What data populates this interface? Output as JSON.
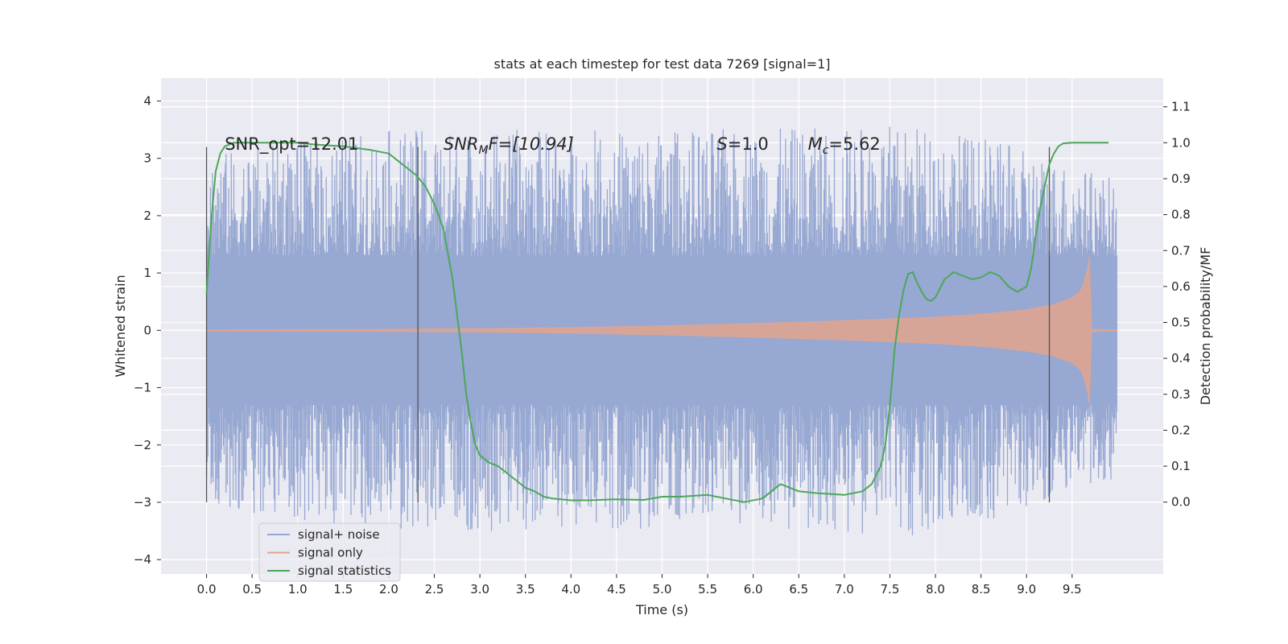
{
  "chart_data": {
    "type": "line",
    "title": "stats at each timestep for test data 7269 [signal=1]",
    "xlabel": "Time (s)",
    "ylabel": "Whitened strain",
    "y2label": "Detection probability/MF",
    "xlim": [
      -0.5,
      10.5
    ],
    "ylim": [
      -4.25,
      4.4
    ],
    "y2lim": [
      -0.2,
      1.18
    ],
    "grid": true,
    "legend_position": "lower-left",
    "xticks": [
      0.0,
      0.5,
      1.0,
      1.5,
      2.0,
      2.5,
      3.0,
      3.5,
      4.0,
      4.5,
      5.0,
      5.5,
      6.0,
      6.5,
      7.0,
      7.5,
      8.0,
      8.5,
      9.0,
      9.5
    ],
    "xtick_labels": [
      "0.0",
      "0.5",
      "1.0",
      "1.5",
      "2.0",
      "2.5",
      "3.0",
      "3.5",
      "4.0",
      "4.5",
      "5.0",
      "5.5",
      "6.0",
      "6.5",
      "7.0",
      "7.5",
      "8.0",
      "8.5",
      "9.0",
      "9.5"
    ],
    "yticks": [
      4,
      3,
      2,
      1,
      0,
      -1,
      -2,
      -3,
      -4
    ],
    "ytick_labels": [
      "4",
      "3",
      "2",
      "1",
      "0",
      "−1",
      "−2",
      "−3",
      "−4"
    ],
    "y2ticks": [
      1.1,
      1.0,
      0.9,
      0.8,
      0.7,
      0.6,
      0.5,
      0.4,
      0.3,
      0.2,
      0.1,
      0.0
    ],
    "y2tick_labels": [
      "1.1",
      "1.0",
      "0.9",
      "0.8",
      "0.7",
      "0.6",
      "0.5",
      "0.4",
      "0.3",
      "0.2",
      "0.1",
      "0.0"
    ],
    "annotations": {
      "snr_opt": "SNR_opt=12.01",
      "snr_mf_name": "SNR",
      "snr_mf_sub": "M",
      "snr_mf_suffix": "F=[10.94]",
      "s_name": "S",
      "s_value": "=1.0",
      "mc_name": "M",
      "mc_sub": "c",
      "mc_value": "=5.62"
    },
    "vlines": {
      "x": [
        0.0,
        2.32,
        9.25
      ],
      "y_range": [
        -3.0,
        3.2
      ]
    },
    "series": [
      {
        "name": "signal+ noise",
        "color": "#97a8d2",
        "x_range": [
          0.0,
          9.99
        ],
        "core_amplitude": 1.3,
        "peak_envelope": [
          [
            0.0,
            3.0
          ],
          [
            2.0,
            3.4
          ],
          [
            4.0,
            3.4
          ],
          [
            6.0,
            3.4
          ],
          [
            8.0,
            3.5
          ],
          [
            9.99,
            2.6
          ]
        ]
      },
      {
        "name": "signal only",
        "color": "#e0a58e",
        "envelope": [
          [
            0.0,
            0.01
          ],
          [
            1.0,
            0.015
          ],
          [
            2.0,
            0.02
          ],
          [
            3.0,
            0.03
          ],
          [
            4.0,
            0.05
          ],
          [
            5.0,
            0.08
          ],
          [
            6.0,
            0.12
          ],
          [
            7.0,
            0.17
          ],
          [
            8.0,
            0.23
          ],
          [
            8.5,
            0.28
          ],
          [
            9.0,
            0.36
          ],
          [
            9.3,
            0.45
          ],
          [
            9.5,
            0.57
          ],
          [
            9.6,
            0.7
          ],
          [
            9.66,
            1.0
          ],
          [
            9.69,
            1.3
          ],
          [
            9.7,
            0.02
          ],
          [
            9.99,
            0.01
          ]
        ]
      },
      {
        "name": "signal statistics",
        "color": "#4ca75a",
        "x": [
          0.0,
          0.05,
          0.1,
          0.15,
          0.2,
          0.3,
          0.5,
          0.8,
          1.0,
          1.2,
          1.5,
          1.8,
          2.0,
          2.1,
          2.2,
          2.3,
          2.4,
          2.5,
          2.6,
          2.7,
          2.8,
          2.85,
          2.9,
          2.95,
          3.0,
          3.1,
          3.2,
          3.3,
          3.5,
          3.6,
          3.7,
          3.8,
          4.0,
          4.2,
          4.5,
          4.8,
          5.0,
          5.2,
          5.5,
          5.7,
          5.9,
          6.1,
          6.2,
          6.3,
          6.35,
          6.5,
          6.7,
          7.0,
          7.2,
          7.3,
          7.4,
          7.45,
          7.5,
          7.55,
          7.6,
          7.65,
          7.7,
          7.75,
          7.8,
          7.85,
          7.9,
          7.95,
          8.0,
          8.1,
          8.2,
          8.3,
          8.4,
          8.5,
          8.6,
          8.7,
          8.8,
          8.9,
          9.0,
          9.05,
          9.1,
          9.15,
          9.2,
          9.25,
          9.3,
          9.35,
          9.4,
          9.5,
          9.6,
          9.7,
          9.8,
          9.9
        ],
        "y": [
          0.58,
          0.78,
          0.92,
          0.97,
          0.99,
          1.0,
          1.0,
          1.0,
          1.0,
          0.995,
          0.99,
          0.98,
          0.97,
          0.95,
          0.93,
          0.91,
          0.88,
          0.83,
          0.76,
          0.62,
          0.42,
          0.3,
          0.22,
          0.16,
          0.13,
          0.11,
          0.1,
          0.08,
          0.04,
          0.03,
          0.015,
          0.01,
          0.005,
          0.005,
          0.008,
          0.006,
          0.015,
          0.015,
          0.02,
          0.01,
          0.0,
          0.01,
          0.03,
          0.05,
          0.045,
          0.03,
          0.025,
          0.02,
          0.03,
          0.05,
          0.1,
          0.16,
          0.27,
          0.42,
          0.52,
          0.59,
          0.635,
          0.64,
          0.61,
          0.585,
          0.565,
          0.56,
          0.57,
          0.62,
          0.64,
          0.63,
          0.62,
          0.625,
          0.64,
          0.63,
          0.6,
          0.585,
          0.6,
          0.65,
          0.74,
          0.82,
          0.88,
          0.94,
          0.97,
          0.99,
          0.998,
          1.0,
          1.0,
          1.0,
          1.0,
          1.0
        ]
      }
    ]
  }
}
